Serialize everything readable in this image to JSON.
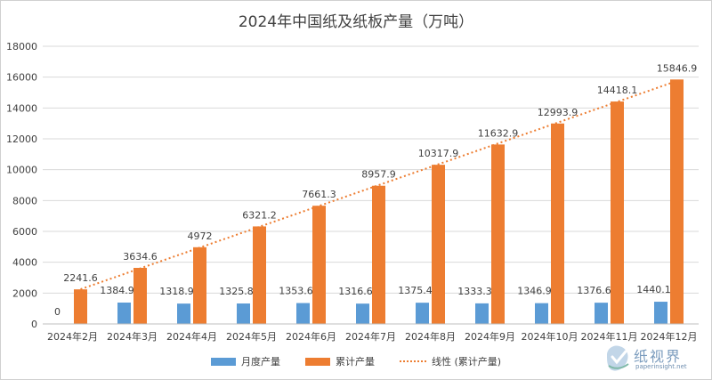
{
  "chart_data": {
    "type": "bar",
    "title": "2024年中国纸及纸板产量（万吨）",
    "categories": [
      "2024年2月",
      "2024年3月",
      "2024年4月",
      "2024年5月",
      "2024年6月",
      "2024年7月",
      "2024年8月",
      "2024年9月",
      "2024年10月",
      "2024年11月",
      "2024年12月"
    ],
    "series": [
      {
        "name": "月度产量",
        "color": "#5B9BD5",
        "values": [
          0,
          1384.9,
          1318.9,
          1325.8,
          1353.6,
          1316.6,
          1375.4,
          1333.3,
          1346.9,
          1376.6,
          1440.1
        ],
        "labels": [
          "0",
          "1384.9",
          "1318.9",
          "1325.8",
          "1353.6",
          "1316.6",
          "1375.4",
          "1333.3",
          "1346.9",
          "1376.6",
          "1440.1"
        ]
      },
      {
        "name": "累计产量",
        "color": "#ED7D31",
        "values": [
          2241.6,
          3634.6,
          4972,
          6321.2,
          7661.3,
          8957.9,
          10317.9,
          11632.9,
          12993.9,
          14418.1,
          15846.9
        ],
        "labels": [
          "2241.6",
          "3634.6",
          "4972",
          "6321.2",
          "7661.3",
          "8957.9",
          "10317.9",
          "11632.9",
          "12993.9",
          "14418.1",
          "15846.9"
        ]
      }
    ],
    "trendline": {
      "name": "线性 (累计产量)",
      "color": "#ED7D31",
      "style": "dotted",
      "of_series": "累计产量"
    },
    "ylim": [
      0,
      18000
    ],
    "yticks": [
      0,
      2000,
      4000,
      6000,
      8000,
      10000,
      12000,
      14000,
      16000,
      18000
    ],
    "grid": true,
    "legend_position": "bottom"
  },
  "legend": {
    "monthly": "月度产量",
    "cumulative": "累计产量",
    "trend": "线性 (累计产量)"
  },
  "watermark": {
    "name": "纸视界",
    "url": "paperinsight.net",
    "icon": "paper-insight-logo-icon"
  }
}
